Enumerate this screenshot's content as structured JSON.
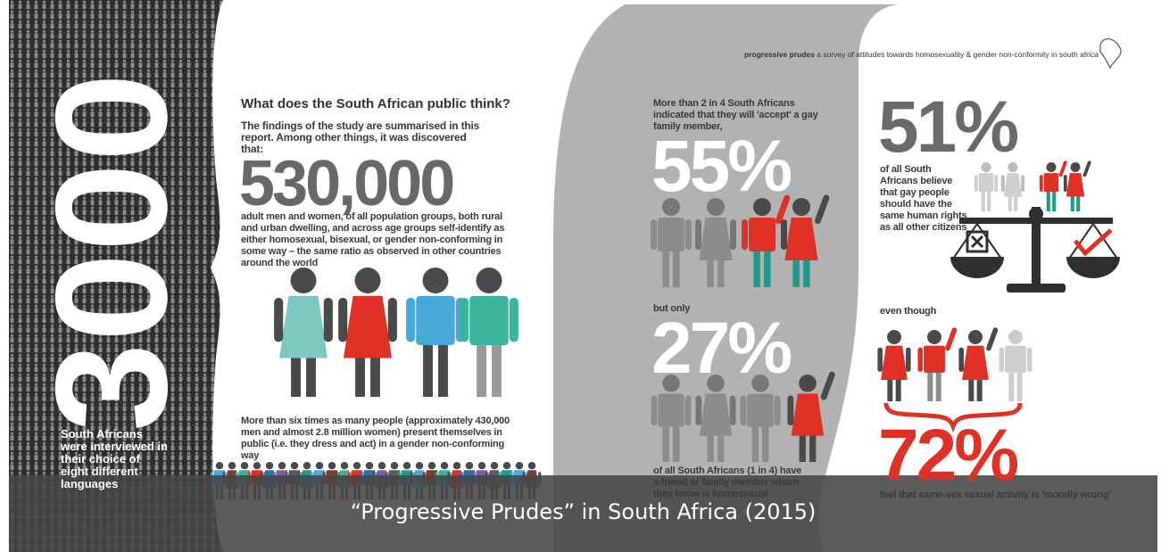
{
  "left_panel": {
    "number": "3000",
    "caption": "South Africans were interviewed in their choice of eight different languages"
  },
  "intro": {
    "heading": "What does the South African public think?",
    "lead": "The findings of the study are summarised in this report. Among other things, it was discovered that:",
    "figure": "530,000",
    "description": "adult men and women, of all population groups, both rural and urban dwelling, and across age groups self-identify as either homosexual, bisexual, or gender non-conforming in some way – the same ratio as observed in other countries around the world",
    "note": "More than six times as many people (approximately 430,000 men and almost 2.8 million women) present themselves in public (i.e. they dress and act) in a gender non-conforming way"
  },
  "header": {
    "brand": "progressive prudes",
    "tagline": "a survey of attitudes towards homosexuality & gender non-conformity in south africa"
  },
  "stats": [
    {
      "intro": "More than 2 in 4 South Africans indicated that they will 'accept' a gay family member,",
      "figure": "55%"
    },
    {
      "intro": "but only",
      "figure": "27%",
      "description": "of all South Africans (1 in 4) have a friend or family member whom they know is homosexual"
    },
    {
      "figure": "51%",
      "description": "of all South Africans believe that gay people should have the same human rights as all other citizens"
    },
    {
      "intro": "even though",
      "figure": "72%",
      "description": "feel that same-sex sexual activity is 'morally wrong'"
    }
  ],
  "caption": "“Progressive Prudes” in South Africa (2015)"
}
